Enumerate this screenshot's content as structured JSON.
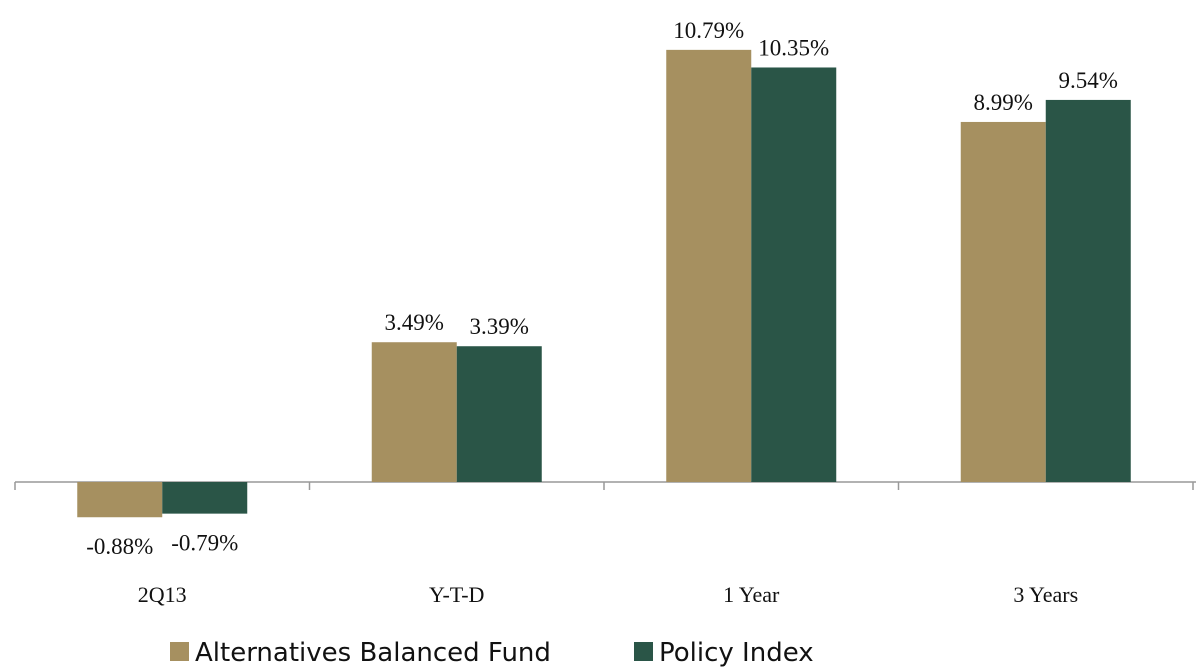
{
  "chart_data": {
    "type": "bar",
    "categories": [
      "2Q13",
      "Y-T-D",
      "1 Year",
      "3 Years"
    ],
    "series": [
      {
        "name": "Alternatives Balanced Fund",
        "color": "#a69060",
        "values": [
          -0.88,
          3.49,
          10.79,
          8.99
        ],
        "value_labels": [
          "-0.88%",
          "3.49%",
          "10.79%",
          "8.99%"
        ]
      },
      {
        "name": "Policy Index",
        "color": "#2a5547",
        "values": [
          -0.79,
          3.39,
          10.35,
          9.54
        ],
        "value_labels": [
          "-0.79%",
          "3.39%",
          "10.35%",
          "9.54%"
        ]
      }
    ],
    "legend": "bottom"
  }
}
